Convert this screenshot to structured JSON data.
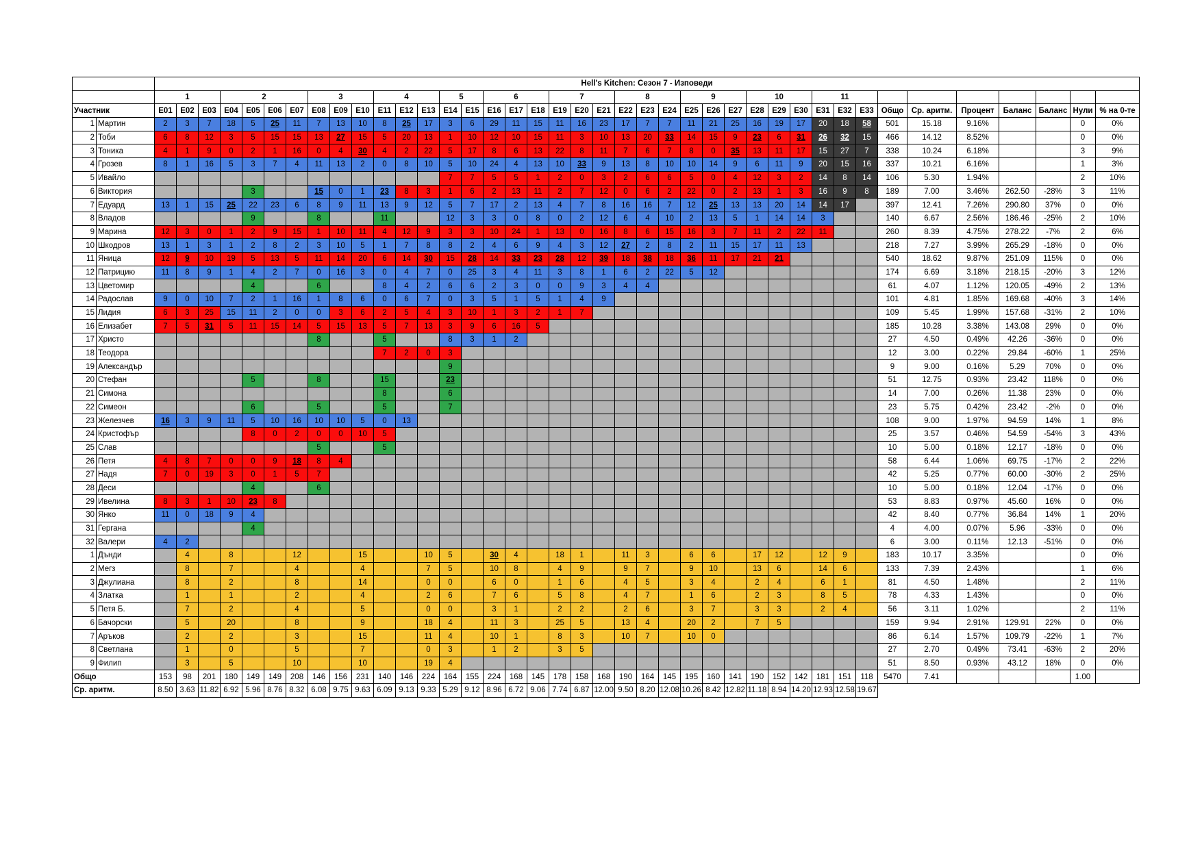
{
  "title": "Hell's Kitchen: Сезон 7 - Изповеди",
  "week_groups": [
    {
      "label": "1",
      "span": 3
    },
    {
      "label": "2",
      "span": 4
    },
    {
      "label": "3",
      "span": 3
    },
    {
      "label": "4",
      "span": 3
    },
    {
      "label": "5",
      "span": 2
    },
    {
      "label": "6",
      "span": 3
    },
    {
      "label": "7",
      "span": 3
    },
    {
      "label": "8",
      "span": 3
    },
    {
      "label": "9",
      "span": 3
    },
    {
      "label": "10",
      "span": 3
    },
    {
      "label": "11",
      "span": 3
    }
  ],
  "headers": {
    "participant": "Участник",
    "episodes": [
      "E01",
      "E02",
      "E03",
      "E04",
      "E05",
      "E06",
      "E07",
      "E08",
      "E09",
      "E10",
      "E11",
      "E12",
      "E13",
      "E14",
      "E15",
      "E16",
      "E17",
      "E18",
      "E19",
      "E20",
      "E21",
      "E22",
      "E23",
      "E24",
      "E25",
      "E26",
      "E27",
      "E28",
      "E29",
      "E30",
      "E31",
      "E32",
      "E33"
    ],
    "stats": [
      "Общо",
      "Ср. аритм.",
      "Процент",
      "Баланс",
      "Баланс",
      "Нули",
      "% на 0-те"
    ]
  },
  "rows": [
    {
      "num": "1",
      "name": "Мартин",
      "cells": "2b 3b 7b 18b 5b 25bu 11b 7b 13b 10b 8b 25bu 17b 3b 6b 29b 11b 15b 11b 16b 23b 17b 7b 7b 11b 21b 25b 16b 19b 17b 20d 18d 58du",
      "stats": [
        "501",
        "15.18",
        "9.16%",
        "",
        "",
        "0",
        "0%"
      ]
    },
    {
      "num": "2",
      "name": "Тоби",
      "cells": "6r 8r 12r 3r 5r 15r 15r 13r 27ru 15r 5r 20r 13r 1r 10r 12r 10r 15r 11r 3r 10r 13r 20r 33ru 14r 15r 9r 23ru 6r 31ru 26du 32du 15d",
      "stats": [
        "466",
        "14.12",
        "8.52%",
        "",
        "",
        "0",
        "0%"
      ]
    },
    {
      "num": "3",
      "name": "Тоника",
      "cells": "4r 1r 9r 0r 2r 1r 16r 0r 4r 30ru 4r 2r 22r 5r 17r 8r 6r 13r 22r 8r 11r 7r 6r 7r 8r 0r 35ru 13r 11r 17r 15d 27d 7d",
      "stats": [
        "338",
        "10.24",
        "6.18%",
        "",
        "",
        "3",
        "9%"
      ]
    },
    {
      "num": "4",
      "name": "Грозев",
      "cells": "8b 1b 16b 5b 3b 7b 4b 11b 13b 2b 0b 8b 10b 5b 10b 24b 4b 13b 10b 33bu 9b 13b 8b 10b 10b 14b 9b 6b 11b 9b 20d 15d 16d",
      "stats": [
        "337",
        "10.21",
        "6.16%",
        "",
        "",
        "1",
        "3%"
      ]
    },
    {
      "num": "5",
      "name": "Ивайло",
      "cells": "g g g g g g g g g g g g g 7r 7r 5r 5r 1r 2r 0r 3r 2r 6r 6r 5r 0r 4r 12r 3r 2r 14d 8d 14d",
      "stats": [
        "106",
        "5.30",
        "1.94%",
        "",
        "",
        "2",
        "10%"
      ]
    },
    {
      "num": "6",
      "name": "Виктория",
      "cells": "g g g g 3gr g g 15bu 0b 1b 23bu 8r 3r 1r 6r 2r 13r 11r 2r 7r 12r 0r 6r 2r 22r 0r 2r 13r 1r 3r 16d 9d 8d",
      "stats": [
        "189",
        "7.00",
        "3.46%",
        "262.50",
        "-28%",
        "3",
        "11%"
      ]
    },
    {
      "num": "7",
      "name": "Едуард",
      "cells": "13b 1b 15b 25bu 22b 23b 6b 8b 9b 11b 13b 9b 12b 5b 7b 17b 2b 13b 4b 7b 8b 16b 16b 7b 12b 25bu 13b 13b 20b 14b 14d 17d g",
      "stats": [
        "397",
        "12.41",
        "7.26%",
        "290.80",
        "37%",
        "0",
        "0%"
      ]
    },
    {
      "num": "8",
      "name": "Владов",
      "cells": "g g g g 9gr g g 8gr g g 11gr g g 12b 3b 3b 0b 8b 0b 2b 12b 6b 4b 10b 2b 13b 5b 1b 14b 14b 3b g g",
      "stats": [
        "140",
        "6.67",
        "2.56%",
        "186.46",
        "-25%",
        "2",
        "10%"
      ]
    },
    {
      "num": "9",
      "name": "Марина",
      "cells": "12r 3r 0r 1r 2r 9r 15r 1r 10r 11r 4r 12r 9r 3r 3r 10r 24r 1r 13r 0r 16r 8r 6r 15r 16r 3r 7r 11r 2r 22r 11r g g",
      "stats": [
        "260",
        "8.39",
        "4.75%",
        "278.22",
        "-7%",
        "2",
        "6%"
      ]
    },
    {
      "num": "10",
      "name": "Шкодров",
      "cells": "13b 1b 3b 1b 2b 8b 2b 3b 10b 5b 1b 7b 8b 8b 2b 4b 6b 9b 4b 3b 12b 27bu 2b 8b 2b 11b 15b 17b 11b 13b g g g",
      "stats": [
        "218",
        "7.27",
        "3.99%",
        "265.29",
        "-18%",
        "0",
        "0%"
      ]
    },
    {
      "num": "11",
      "name": "Яница",
      "cells": "12r 9ru 10r 19r 5r 13r 5r 11r 14r 20r 6r 14r 30ru 15r 28ru 14r 33ru 23ru 28ru 12r 39ru 18r 38ru 18r 36ru 11r 17r 21r 21ru g g g g",
      "stats": [
        "540",
        "18.62",
        "9.87%",
        "251.09",
        "115%",
        "0",
        "0%"
      ]
    },
    {
      "num": "12",
      "name": "Патрицию",
      "cells": "11b 8b 9b 1b 4b 2b 7b 0b 16b 3b 0b 4b 7b 0b 25b 3b 4b 11b 3b 8b 1b 6b 2b 22b 5b 12b g g g g g g g",
      "stats": [
        "174",
        "6.69",
        "3.18%",
        "218.15",
        "-20%",
        "3",
        "12%"
      ]
    },
    {
      "num": "13",
      "name": "Цветомир",
      "cells": "g g g g 4gr g g 6gr g g 8b 4b 2b 6b 6b 2b 3b 0b 0b 9b 3b 4b 4b g g g g g g g g g g",
      "stats": [
        "61",
        "4.07",
        "1.12%",
        "120.05",
        "-49%",
        "2",
        "13%"
      ]
    },
    {
      "num": "14",
      "name": "Радослав",
      "cells": "9b 0b 10b 7b 2b 1b 16b 1b 8b 6b 0b 6b 7b 0b 3b 5b 1b 5b 1b 4b 9b g g g g g g g g g g g g",
      "stats": [
        "101",
        "4.81",
        "1.85%",
        "169.68",
        "-40%",
        "3",
        "14%"
      ]
    },
    {
      "num": "15",
      "name": "Лидия",
      "cells": "6r 3r 25r 15b 11b 2b 0b 0b 3r 6r 2r 5r 4r 3r 10r 1r 3r 2r 1r 7r g g g g g g g g g g g g g",
      "stats": [
        "109",
        "5.45",
        "1.99%",
        "157.68",
        "-31%",
        "2",
        "10%"
      ]
    },
    {
      "num": "16",
      "name": "Елизабет",
      "cells": "7r 5r 31ru 5r 11r 15r 14r 5r 15r 13r 5r 7r 13r 3r 9r 6r 16r 5r g g g g g g g g g g g g g g g",
      "stats": [
        "185",
        "10.28",
        "3.38%",
        "143.08",
        "29%",
        "0",
        "0%"
      ]
    },
    {
      "num": "17",
      "name": "Христо",
      "cells": "g g g g g g g 8gr g g 5gr g g 8b 3b 1b 2b g g g g g g g g g g g g g g g g",
      "stats": [
        "27",
        "4.50",
        "0.49%",
        "42.26",
        "-36%",
        "0",
        "0%"
      ]
    },
    {
      "num": "18",
      "name": "Теодора",
      "cells": "g g g g g g g g g g 7r 2r 0r 3r g g g g g g g g g g g g g g g g g g g",
      "stats": [
        "12",
        "3.00",
        "0.22%",
        "29.84",
        "-60%",
        "1",
        "25%"
      ]
    },
    {
      "num": "19",
      "name": "Александър",
      "cells": "g g g g g g g g g g g g g 9gr g g g g g g g g g g g g g g g g g g g",
      "stats": [
        "9",
        "9.00",
        "0.16%",
        "5.29",
        "70%",
        "0",
        "0%"
      ]
    },
    {
      "num": "20",
      "name": "Стефан",
      "cells": "g g g g 5gr g g 8gr g g 15gr g g 23gru g g g g g g g g g g g g g g g g g g g",
      "stats": [
        "51",
        "12.75",
        "0.93%",
        "23.42",
        "118%",
        "0",
        "0%"
      ]
    },
    {
      "num": "21",
      "name": "Симона",
      "cells": "g g g g g g g g g g 8gr g g 6gr g g g g g g g g g g g g g g g g g g g",
      "stats": [
        "14",
        "7.00",
        "0.26%",
        "11.38",
        "23%",
        "0",
        "0%"
      ]
    },
    {
      "num": "22",
      "name": "Симеон",
      "cells": "g g g g 6gr g g 5gr g g 5gr g g 7gr g g g g g g g g g g g g g g g g g g g",
      "stats": [
        "23",
        "5.75",
        "0.42%",
        "23.42",
        "-2%",
        "0",
        "0%"
      ]
    },
    {
      "num": "23",
      "name": "Железчев",
      "cells": "16bu 3b 9b 11b 5b 10b 16b 10b 10b 5b 0b 13b g g g g g g g g g g g g g g g g g g g g g",
      "stats": [
        "108",
        "9.00",
        "1.97%",
        "94.59",
        "14%",
        "1",
        "8%"
      ]
    },
    {
      "num": "24",
      "name": "Кристофър",
      "cells": "g g g g 8r 0r 2r 0r 0r 10r 5r g g g g g g g g g g g g g g g g g g g g g g",
      "stats": [
        "25",
        "3.57",
        "0.46%",
        "54.59",
        "-54%",
        "3",
        "43%"
      ]
    },
    {
      "num": "25",
      "name": "Слав",
      "cells": "g g g g g g g 5gr g g 5gr g g g g g g g g g g g g g g g g g g g g g g",
      "stats": [
        "10",
        "5.00",
        "0.18%",
        "12.17",
        "-18%",
        "0",
        "0%"
      ]
    },
    {
      "num": "26",
      "name": "Петя",
      "cells": "4r 8r 7r 0r 0r 9r 18ru 8r 4r g g g g g g g g g g g g g g g g g g g g g g g g",
      "stats": [
        "58",
        "6.44",
        "1.06%",
        "69.75",
        "-17%",
        "2",
        "22%"
      ]
    },
    {
      "num": "27",
      "name": "Надя",
      "cells": "7r 0r 19r 3r 0r 1r 5r 7r g g g g g g g g g g g g g g g g g g g g g g g g g",
      "stats": [
        "42",
        "5.25",
        "0.77%",
        "60.00",
        "-30%",
        "2",
        "25%"
      ]
    },
    {
      "num": "28",
      "name": "Деси",
      "cells": "g g g g 4gr g g 6gr g g g g g g g g g g g g g g g g g g g g g g g g g",
      "stats": [
        "10",
        "5.00",
        "0.18%",
        "12.04",
        "-17%",
        "0",
        "0%"
      ]
    },
    {
      "num": "29",
      "name": "Ивелина",
      "cells": "8r 3r 1r 10r 23ru 8r g g g g g g g g g g g g g g g g g g g g g g g g g g g",
      "stats": [
        "53",
        "8.83",
        "0.97%",
        "45.60",
        "16%",
        "0",
        "0%"
      ]
    },
    {
      "num": "30",
      "name": "Янко",
      "cells": "11b 0b 18b 9b 4b g g g g g g g g g g g g g g g g g g g g g g g g g g g g",
      "stats": [
        "42",
        "8.40",
        "0.77%",
        "36.84",
        "14%",
        "1",
        "20%"
      ]
    },
    {
      "num": "31",
      "name": "Гергана",
      "cells": "g g g g 4gr g g g g g g g g g g g g g g g g g g g g g g g g g g g g",
      "stats": [
        "4",
        "4.00",
        "0.07%",
        "5.96",
        "-33%",
        "0",
        "0%"
      ]
    },
    {
      "num": "32",
      "name": "Валери",
      "cells": "4b 2b g g g g g g g g g g g g g g g g g g g g g g g g g g g g g g g",
      "stats": [
        "6",
        "3.00",
        "0.11%",
        "12.13",
        "-51%",
        "0",
        "0%"
      ]
    },
    {
      "num": "1",
      "name": "Дънди",
      "cells": "g 4y y 8y y y 12y y y 15y y y 10y 5y y 30yu 4y y 18y 1y y 11y 3y y 6y 6y y 17y 12y y 12y 9y y",
      "stats": [
        "183",
        "10.17",
        "3.35%",
        "",
        "",
        "0",
        "0%"
      ]
    },
    {
      "num": "2",
      "name": "Мегз",
      "cells": "g 8y y 7y y y 4y y y 4y y y 7y 5y y 10y 8y y 4y 9y y 9y 7y y 9y 10y y 13y 6y y 14y 6y y",
      "stats": [
        "133",
        "7.39",
        "2.43%",
        "",
        "",
        "1",
        "6%"
      ]
    },
    {
      "num": "3",
      "name": "Джулиана",
      "cells": "g 8y y 2y y y 8y y y 14y y y 0y 0y y 6y 0y y 1y 6y y 4y 5y y 3y 4y y 2y 4y y 6y 1y y",
      "stats": [
        "81",
        "4.50",
        "1.48%",
        "",
        "",
        "2",
        "11%"
      ]
    },
    {
      "num": "4",
      "name": "Златка",
      "cells": "g 1y y 1y y y 2y y y 4y y y 2y 6y y 7y 6y y 5y 8y y 4y 7y y 1y 6y y 2y 3y y 8y 5y y",
      "stats": [
        "78",
        "4.33",
        "1.43%",
        "",
        "",
        "0",
        "0%"
      ]
    },
    {
      "num": "5",
      "name": "Петя Б.",
      "cells": "g 7y y 2y y y 4y y y 5y y y 0y 0y y 3y 1y y 2y 2y y 2y 6y y 3y 7y y 3y 3y y 2y 4y y",
      "stats": [
        "56",
        "3.11",
        "1.02%",
        "",
        "",
        "2",
        "11%"
      ]
    },
    {
      "num": "6",
      "name": "Бачорски",
      "cells": "g 5y y 20y y y 8y y y 9y y y 18y 4y y 11y 3y y 25y 5y y 13y 4y y 20y 2y y 7y 5y g g g g",
      "stats": [
        "159",
        "9.94",
        "2.91%",
        "129.91",
        "22%",
        "0",
        "0%"
      ]
    },
    {
      "num": "7",
      "name": "Аръков",
      "cells": "g 2y y 2y y y 3y y y 15y y y 11y 4y y 10y 1y y 8y 3y y 10y 7y y 10y 0y g g g g g g g",
      "stats": [
        "86",
        "6.14",
        "1.57%",
        "109.79",
        "-22%",
        "1",
        "7%"
      ]
    },
    {
      "num": "8",
      "name": "Светлана",
      "cells": "g 1y y 0y y y 5y y y 7y y y 0y 3y y 1y 2y y 3y 5y g g g g g g g g g g g g g",
      "stats": [
        "27",
        "2.70",
        "0.49%",
        "73.41",
        "-63%",
        "2",
        "20%"
      ]
    },
    {
      "num": "9",
      "name": "Филип",
      "cells": "g 3y y 5y y y 10y y y 10y y y 19y 4y g g g g g g g g g g g g g g g g g g g",
      "stats": [
        "51",
        "8.50",
        "0.93%",
        "43.12",
        "18%",
        "0",
        "0%"
      ]
    }
  ],
  "total_row": {
    "label": "Общо",
    "values": [
      "153",
      "98",
      "201",
      "180",
      "149",
      "149",
      "208",
      "146",
      "156",
      "231",
      "140",
      "146",
      "224",
      "164",
      "155",
      "224",
      "168",
      "145",
      "178",
      "158",
      "168",
      "190",
      "164",
      "145",
      "195",
      "160",
      "141",
      "190",
      "152",
      "142",
      "181",
      "151",
      "118"
    ],
    "stats": [
      "5470",
      "7.41",
      "",
      "",
      "",
      "1.00",
      ""
    ]
  },
  "avg_row": {
    "label": "Ср. аритм.",
    "values": [
      "8.50",
      "3.63",
      "11.82",
      "6.92",
      "5.96",
      "8.76",
      "8.32",
      "6.08",
      "9.75",
      "9.63",
      "6.09",
      "9.13",
      "9.33",
      "5.29",
      "9.12",
      "8.96",
      "6.72",
      "9.06",
      "7.74",
      "6.87",
      "12.00",
      "9.50",
      "8.20",
      "12.08",
      "10.26",
      "8.42",
      "12.82",
      "11.18",
      "8.94",
      "14.20",
      "12.93",
      "12.58",
      "19.67"
    ]
  },
  "colors": {
    "gray": "#b3b3b3",
    "blue": "#4a7fe0",
    "red": "#fb0d0d",
    "green": "#2fa64a",
    "yellow": "#f6c230",
    "dark": "#3b3b3b"
  }
}
